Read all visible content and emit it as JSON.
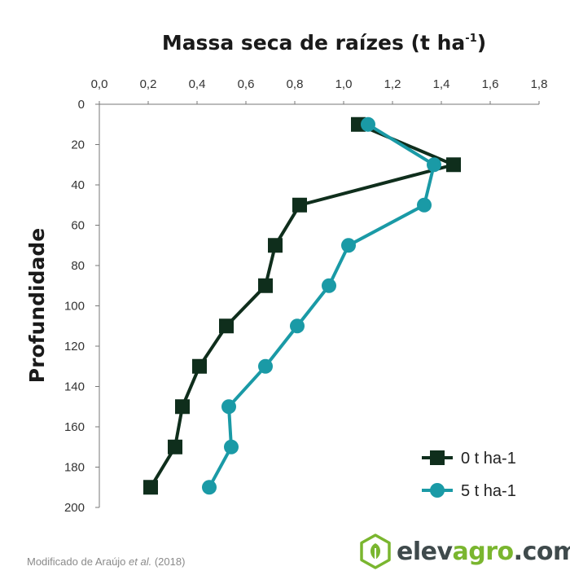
{
  "chart_data": {
    "type": "line",
    "title": "Massa seca de raízes (t ha",
    "title_sup": "-1",
    "title_end": ")",
    "xlabel": "Massa seca de raízes (t ha-1)",
    "ylabel": "Profundidade",
    "x_ticks": [
      "0,0",
      "0,2",
      "0,4",
      "0,6",
      "0,8",
      "1,0",
      "1,2",
      "1,4",
      "1,6",
      "1,8"
    ],
    "y_ticks": [
      "0",
      "20",
      "40",
      "60",
      "80",
      "100",
      "120",
      "140",
      "160",
      "180",
      "200"
    ],
    "xlim": [
      0,
      1.8
    ],
    "ylim": [
      0,
      200
    ],
    "x_axis_position": "top",
    "y_axis_inverted": true,
    "grid": false,
    "legend_position": "bottom-right",
    "series": [
      {
        "name": "0 t ha-1",
        "color": "#0f2e1c",
        "marker": "square",
        "points": [
          {
            "x": 1.06,
            "y": 10
          },
          {
            "x": 1.45,
            "y": 30
          },
          {
            "x": 0.82,
            "y": 50
          },
          {
            "x": 0.72,
            "y": 70
          },
          {
            "x": 0.68,
            "y": 90
          },
          {
            "x": 0.52,
            "y": 110
          },
          {
            "x": 0.41,
            "y": 130
          },
          {
            "x": 0.34,
            "y": 150
          },
          {
            "x": 0.31,
            "y": 170
          },
          {
            "x": 0.21,
            "y": 190
          }
        ]
      },
      {
        "name": "5 t ha-1",
        "color": "#1a9aa6",
        "marker": "circle",
        "points": [
          {
            "x": 1.1,
            "y": 10
          },
          {
            "x": 1.37,
            "y": 30
          },
          {
            "x": 1.33,
            "y": 50
          },
          {
            "x": 1.02,
            "y": 70
          },
          {
            "x": 0.94,
            "y": 90
          },
          {
            "x": 0.81,
            "y": 110
          },
          {
            "x": 0.68,
            "y": 130
          },
          {
            "x": 0.53,
            "y": 150
          },
          {
            "x": 0.54,
            "y": 170
          },
          {
            "x": 0.45,
            "y": 190
          }
        ]
      }
    ]
  },
  "footer": {
    "credit_prefix": "Modificado de Araújo ",
    "credit_italic": "et al.",
    "credit_suffix": " (2018)"
  },
  "logo": {
    "icon": "elevagro-hexagon-leaf-icon",
    "part1": "elev",
    "part2": "agro",
    "part3": ".com",
    "color_primary": "#3f4a4c",
    "color_accent": "#7ab62f"
  }
}
